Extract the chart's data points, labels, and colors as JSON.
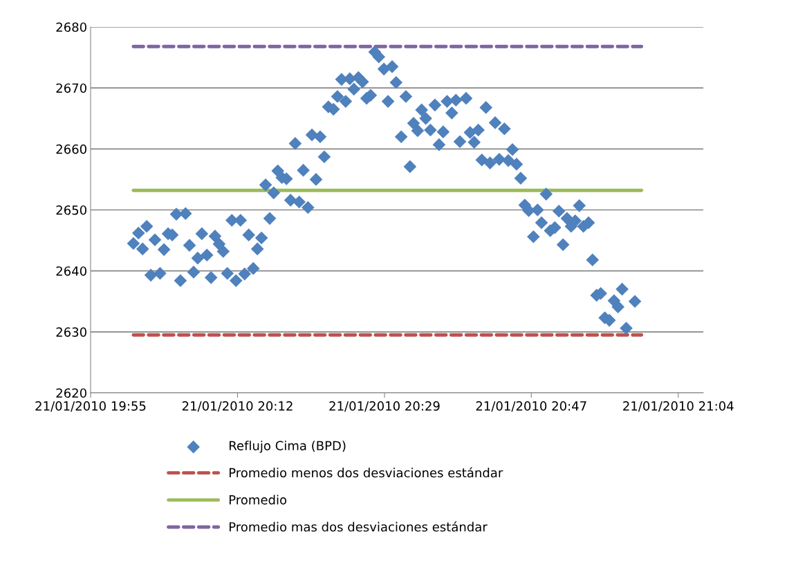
{
  "chart_data": {
    "type": "scatter",
    "xlim": [
      "2010-01-21T19:55:12",
      "2010-01-21T21:07:16"
    ],
    "ylim": [
      2620,
      2680
    ],
    "xticks": [
      {
        "value": "2010-01-21T19:55:12",
        "label": "21/01/2010 19:55"
      },
      {
        "value": "2010-01-21T20:12:29",
        "label": "21/01/2010 20:12"
      },
      {
        "value": "2010-01-21T20:29:46",
        "label": "21/01/2010 20:29"
      },
      {
        "value": "2010-01-21T20:47:02",
        "label": "21/01/2010 20:47"
      },
      {
        "value": "2010-01-21T21:04:19",
        "label": "21/01/2010 21:04"
      }
    ],
    "yticks": [
      2620,
      2630,
      2640,
      2650,
      2660,
      2670,
      2680
    ],
    "grid": "y",
    "legend": "bottom",
    "series": [
      {
        "name": "Reflujo Cima (BPD)",
        "marker": "diamond",
        "color": "#4f81bd",
        "x": [
          "2010-01-21T20:00:14",
          "2010-01-21T20:00:50",
          "2010-01-21T20:01:19",
          "2010-01-21T20:01:48",
          "2010-01-21T20:02:17",
          "2010-01-21T20:02:46",
          "2010-01-21T20:03:22",
          "2010-01-21T20:03:50",
          "2010-01-21T20:04:19",
          "2010-01-21T20:04:48",
          "2010-01-21T20:05:17",
          "2010-01-21T20:05:46",
          "2010-01-21T20:06:22",
          "2010-01-21T20:06:50",
          "2010-01-21T20:07:19",
          "2010-01-21T20:07:48",
          "2010-01-21T20:08:17",
          "2010-01-21T20:08:53",
          "2010-01-21T20:09:22",
          "2010-01-21T20:09:50",
          "2010-01-21T20:10:19",
          "2010-01-21T20:10:48",
          "2010-01-21T20:11:17",
          "2010-01-21T20:11:49",
          "2010-01-21T20:12:18",
          "2010-01-21T20:12:50",
          "2010-01-21T20:13:19",
          "2010-01-21T20:13:48",
          "2010-01-21T20:14:20",
          "2010-01-21T20:14:49",
          "2010-01-21T20:15:18",
          "2010-01-21T20:15:47",
          "2010-01-21T20:16:16",
          "2010-01-21T20:16:44",
          "2010-01-21T20:17:13",
          "2010-01-21T20:17:42",
          "2010-01-21T20:18:14",
          "2010-01-21T20:18:43",
          "2010-01-21T20:19:16",
          "2010-01-21T20:19:44",
          "2010-01-21T20:20:13",
          "2010-01-21T20:20:46",
          "2010-01-21T20:21:14",
          "2010-01-21T20:21:43",
          "2010-01-21T20:22:12",
          "2010-01-21T20:22:41",
          "2010-01-21T20:23:10",
          "2010-01-21T20:23:46",
          "2010-01-21T20:24:14",
          "2010-01-21T20:24:43",
          "2010-01-21T20:25:12",
          "2010-01-21T20:25:41",
          "2010-01-21T20:26:10",
          "2010-01-21T20:26:42",
          "2010-01-21T20:27:11",
          "2010-01-21T20:27:40",
          "2010-01-21T20:28:08",
          "2010-01-21T20:28:37",
          "2010-01-21T20:29:06",
          "2010-01-21T20:29:42",
          "2010-01-21T20:30:11",
          "2010-01-21T20:30:40",
          "2010-01-21T20:31:08",
          "2010-01-21T20:31:44",
          "2010-01-21T20:32:17",
          "2010-01-21T20:32:46",
          "2010-01-21T20:33:11",
          "2010-01-21T20:33:40",
          "2010-01-21T20:34:08",
          "2010-01-21T20:34:37",
          "2010-01-21T20:35:10",
          "2010-01-21T20:35:42",
          "2010-01-21T20:36:11",
          "2010-01-21T20:36:40",
          "2010-01-21T20:37:08",
          "2010-01-21T20:37:41",
          "2010-01-21T20:38:10",
          "2010-01-21T20:38:38",
          "2010-01-21T20:39:22",
          "2010-01-21T20:39:50",
          "2010-01-21T20:40:19",
          "2010-01-21T20:40:48",
          "2010-01-21T20:41:13",
          "2010-01-21T20:41:42",
          "2010-01-21T20:42:11",
          "2010-01-21T20:42:47",
          "2010-01-21T20:43:16",
          "2010-01-21T20:43:52",
          "2010-01-21T20:44:20",
          "2010-01-21T20:44:49",
          "2010-01-21T20:45:18",
          "2010-01-21T20:45:47",
          "2010-01-21T20:46:16",
          "2010-01-21T20:46:44",
          "2010-01-21T20:47:17",
          "2010-01-21T20:47:46",
          "2010-01-21T20:48:14",
          "2010-01-21T20:48:47",
          "2010-01-21T20:49:16",
          "2010-01-21T20:49:48",
          "2010-01-21T20:50:17",
          "2010-01-21T20:50:46",
          "2010-01-21T20:51:14",
          "2010-01-21T20:51:43",
          "2010-01-21T20:52:12",
          "2010-01-21T20:52:41",
          "2010-01-21T20:53:10",
          "2010-01-21T20:53:46",
          "2010-01-21T20:54:14",
          "2010-01-21T20:54:43",
          "2010-01-21T20:55:12",
          "2010-01-21T20:55:41",
          "2010-01-21T20:56:13",
          "2010-01-21T20:56:46",
          "2010-01-21T20:57:14",
          "2010-01-21T20:57:43",
          "2010-01-21T20:58:12",
          "2010-01-21T20:59:13"
        ],
        "values": [
          2644.5,
          2646.2,
          2643.6,
          2647.3,
          2639.3,
          2645.1,
          2639.6,
          2643.5,
          2646.1,
          2645.9,
          2649.3,
          2638.4,
          2649.4,
          2644.2,
          2639.8,
          2642.1,
          2646.1,
          2642.6,
          2638.9,
          2645.7,
          2644.4,
          2643.2,
          2639.6,
          2648.3,
          2638.4,
          2648.3,
          2639.5,
          2645.9,
          2640.4,
          2643.6,
          2645.4,
          2654.1,
          2648.6,
          2652.8,
          2656.4,
          2655.3,
          2655.1,
          2651.6,
          2660.9,
          2651.3,
          2656.5,
          2650.4,
          2662.3,
          2655.0,
          2662.0,
          2658.7,
          2666.9,
          2666.5,
          2668.6,
          2671.4,
          2667.8,
          2671.5,
          2669.8,
          2671.7,
          2671.0,
          2668.3,
          2668.8,
          2675.9,
          2675.1,
          2673.1,
          2667.8,
          2673.5,
          2670.9,
          2662.0,
          2668.6,
          2657.1,
          2664.2,
          2663.0,
          2666.4,
          2665.0,
          2663.1,
          2667.2,
          2660.7,
          2662.8,
          2667.8,
          2665.9,
          2668.0,
          2661.2,
          2668.3,
          2662.7,
          2661.1,
          2663.1,
          2658.2,
          2666.8,
          2657.7,
          2664.3,
          2658.3,
          2663.3,
          2658.1,
          2659.9,
          2657.5,
          2655.2,
          2650.8,
          2649.9,
          2645.6,
          2650.0,
          2647.9,
          2652.6,
          2646.6,
          2647.1,
          2649.8,
          2644.3,
          2648.6,
          2647.3,
          2648.2,
          2650.7,
          2647.3,
          2647.9,
          2641.8,
          2636.0,
          2636.3,
          2632.3,
          2631.9,
          2635.1,
          2634.1,
          2637.0,
          2630.6,
          2635.0
        ]
      },
      {
        "name": "Promedio menos dos desviaciones estándar",
        "type": "line",
        "line_style": "dashed",
        "color": "#c0504d",
        "x": [
          "2010-01-21T20:00:14",
          "2010-01-21T21:00:00"
        ],
        "values": [
          2629.5,
          2629.5
        ]
      },
      {
        "name": "Promedio",
        "type": "line",
        "line_style": "solid",
        "color": "#9bbb59",
        "x": [
          "2010-01-21T20:00:14",
          "2010-01-21T21:00:00"
        ],
        "values": [
          2653.2,
          2653.2
        ]
      },
      {
        "name": "Promedio mas dos desviaciones estándar",
        "type": "line",
        "line_style": "dashed",
        "color": "#8064a2",
        "x": [
          "2010-01-21T20:00:14",
          "2010-01-21T21:00:00"
        ],
        "values": [
          2676.8,
          2676.8
        ]
      }
    ]
  }
}
